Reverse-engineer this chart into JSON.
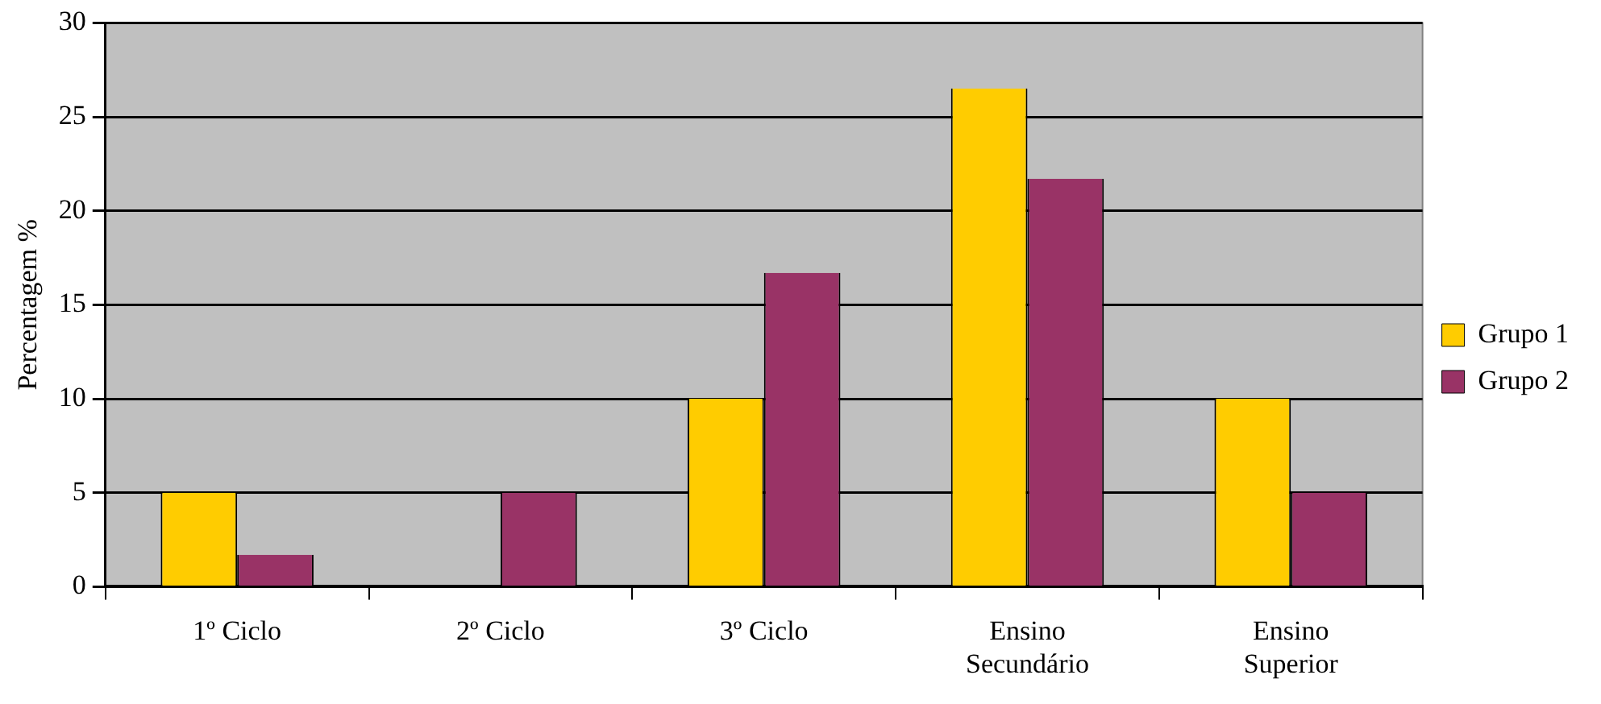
{
  "chart_data": {
    "type": "bar",
    "ylabel": "Percentagem %",
    "categories": [
      "1º Ciclo",
      "2º Ciclo",
      "3º Ciclo",
      "Ensino Secundário",
      "Ensino Superior"
    ],
    "series": [
      {
        "name": "Grupo 1",
        "color": "#ffcc00",
        "values": [
          5,
          0,
          10,
          26.5,
          10
        ]
      },
      {
        "name": "Grupo 2",
        "color": "#993366",
        "values": [
          1.7,
          5,
          16.7,
          21.7,
          5
        ]
      }
    ],
    "ylim": [
      0,
      30
    ],
    "yticks": [
      0,
      5,
      10,
      15,
      20,
      25,
      30
    ],
    "grid": "y",
    "legend": "right"
  }
}
